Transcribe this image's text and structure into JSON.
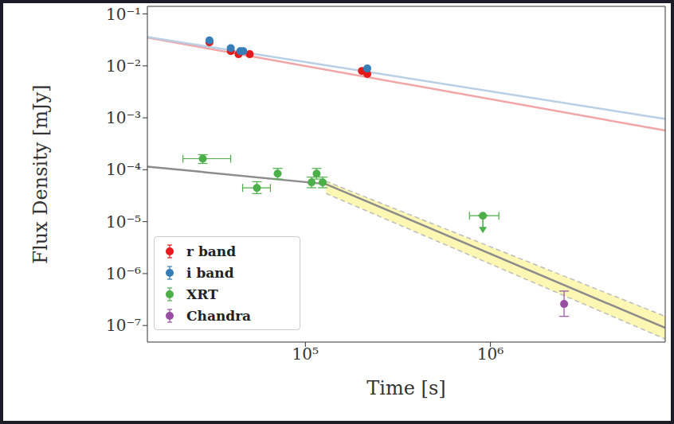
{
  "chart_data": {
    "type": "scatter",
    "x_label": "Time [s]",
    "y_label": "Flux Density [mJy]",
    "log": true,
    "legend": "lower left",
    "xlim": [
      14000,
      8800000
    ],
    "ylim": [
      4.8e-08,
      0.14
    ],
    "xticks": [
      {
        "value": 100000,
        "label": "10⁵"
      },
      {
        "value": 1000000,
        "label": "10⁶"
      }
    ],
    "yticks": [
      {
        "value": 1e-07,
        "label": "10⁻⁷"
      },
      {
        "value": 1e-06,
        "label": "10⁻⁶"
      },
      {
        "value": 1e-05,
        "label": "10⁻⁵"
      },
      {
        "value": 0.0001,
        "label": "10⁻⁴"
      },
      {
        "value": 0.001,
        "label": "10⁻³"
      },
      {
        "value": 0.01,
        "label": "10⁻²"
      },
      {
        "value": 0.1,
        "label": "10⁻¹"
      }
    ],
    "series": [
      {
        "name": "r band",
        "color": "#e41a1c",
        "marker": "circle",
        "x": [
          30300,
          39500,
          43500,
          50000,
          202000,
          216000
        ],
        "values": [
          0.0283,
          0.0193,
          0.0168,
          0.0168,
          0.008,
          0.007
        ],
        "fit": {
          "x": [
            14000,
            8800000
          ],
          "values": [
            0.035,
            0.00057
          ],
          "color": "#f2a5a6"
        }
      },
      {
        "name": "i band",
        "color": "#377eb8",
        "marker": "circle",
        "x": [
          30300,
          39500,
          44500,
          46200,
          216000
        ],
        "values": [
          0.031,
          0.022,
          0.0193,
          0.0193,
          0.0089
        ],
        "fit": {
          "x": [
            14000,
            8800000
          ],
          "values": [
            0.036,
            0.00095
          ],
          "color": "#b9cfe5"
        }
      },
      {
        "name": "XRT",
        "color": "#4daf4a",
        "marker": "circle",
        "x": [
          27900,
          54700,
          70800,
          108000,
          115000,
          124000,
          910000
        ],
        "values": [
          0.000163,
          4.47e-05,
          8.4e-05,
          5.7e-05,
          8.4e-05,
          5.7e-05,
          1.3e-05
        ],
        "xerr": [
          [
            6100,
            11600
          ],
          [
            8900,
            10000
          ],
          null,
          null,
          null,
          null,
          [
            140000,
            200000
          ]
        ],
        "yerr": [
          [
            3.1e-05,
            3.2e-05
          ],
          [
            1e-05,
            1.4e-05
          ],
          [
            1.8e-05,
            2.2e-05
          ],
          [
            1.2e-05,
            1.5e-05
          ],
          [
            1.8e-05,
            2.2e-05
          ],
          [
            1.2e-05,
            1.5e-05
          ],
          null
        ],
        "upper_limit": [
          false,
          false,
          false,
          false,
          false,
          false,
          true
        ],
        "fit": {
          "x": [
            14000,
            129000,
            8800000
          ],
          "values": [
            0.000115,
            5.3e-05,
            9e-08
          ],
          "color": "#8c8c8c"
        },
        "band": {
          "x": [
            129000,
            8800000
          ],
          "low": [
            3.5e-05,
            5.5e-08
          ],
          "high": [
            6e-05,
            1.5e-07
          ],
          "color": "#fcf6a6"
        }
      },
      {
        "name": "Chandra",
        "color": "#984ea3",
        "marker": "circle",
        "x": [
          2500000
        ],
        "values": [
          2.6e-07
        ],
        "yerr": [
          [
            1.1e-07,
            2e-07
          ]
        ]
      }
    ]
  }
}
